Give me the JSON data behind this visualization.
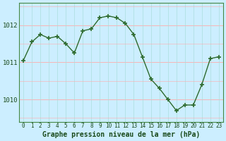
{
  "x": [
    0,
    1,
    2,
    3,
    4,
    5,
    6,
    7,
    8,
    9,
    10,
    11,
    12,
    13,
    14,
    15,
    16,
    17,
    18,
    19,
    20,
    21,
    22,
    23
  ],
  "y": [
    1011.05,
    1011.55,
    1011.75,
    1011.65,
    1011.7,
    1011.5,
    1011.25,
    1011.85,
    1011.9,
    1012.2,
    1012.25,
    1012.2,
    1012.05,
    1011.75,
    1011.15,
    1010.55,
    1010.3,
    1010.0,
    1009.7,
    1009.85,
    1009.85,
    1010.4,
    1011.1,
    1011.15
  ],
  "line_color": "#2d6a2d",
  "marker_color": "#2d6a2d",
  "bg_color": "#cceeff",
  "grid_h_color": "#ffaaaa",
  "grid_v_color": "#aadddd",
  "border_color": "#448844",
  "xlabel": "Graphe pression niveau de la mer (hPa)",
  "ylim": [
    1009.4,
    1012.6
  ],
  "xlim": [
    -0.5,
    23.5
  ],
  "yticks": [
    1010,
    1011,
    1012
  ],
  "xticks": [
    0,
    1,
    2,
    3,
    4,
    5,
    6,
    7,
    8,
    9,
    10,
    11,
    12,
    13,
    14,
    15,
    16,
    17,
    18,
    19,
    20,
    21,
    22,
    23
  ],
  "xlabel_fontsize": 7,
  "tick_fontsize": 6.5,
  "marker_size": 4,
  "line_width": 1.0
}
